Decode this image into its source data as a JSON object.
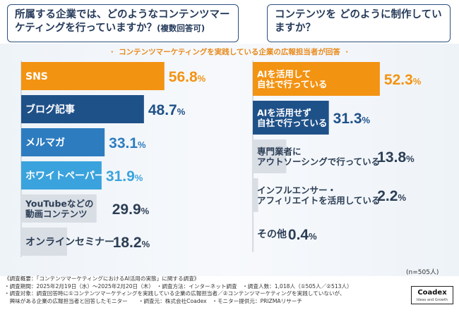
{
  "questions": {
    "left": "所属する企業では、どのようなコンテンツマーケティングを行っていますか？",
    "left_note": "(複数回答可)",
    "right": "コンテンツを どのように制作していますか？"
  },
  "subtitle": "コンテンツマーケティングを実践している企業の広報担当者が回答",
  "sample_size": "(n=505人)",
  "chart_data": [
    {
      "type": "bar",
      "orientation": "horizontal",
      "title": "所属する企業では、どのようなコンテンツマーケティングを行っていますか？(複数回答可)",
      "unit": "%",
      "categories": [
        "SNS",
        "ブログ記事",
        "メルマガ",
        "ホワイトペーパー",
        "YouTubeなどの動画コンテンツ",
        "オンラインセミナー"
      ],
      "values": [
        56.8,
        48.7,
        33.1,
        31.9,
        29.9,
        18.2
      ],
      "label_lines": [
        [
          "SNS"
        ],
        [
          "ブログ記事"
        ],
        [
          "メルマガ"
        ],
        [
          "ホワイトペーパー"
        ],
        [
          "YouTubeなどの",
          "動画コンテンツ"
        ],
        [
          "オンラインセミナー"
        ]
      ],
      "colors": [
        "#f39312",
        "#1f5189",
        "#2e7cc0",
        "#3aa3dd",
        "#d9dee5",
        "#d9dee5"
      ],
      "label_colors": [
        "#ffffff",
        "#ffffff",
        "#ffffff",
        "#ffffff",
        "#2c3e55",
        "#2c3e55"
      ],
      "value_colors": [
        "#f39312",
        "#1f5189",
        "#2e7cc0",
        "#3aa3dd",
        "#2c3e55",
        "#2c3e55"
      ]
    },
    {
      "type": "bar",
      "orientation": "horizontal",
      "title": "コンテンツをどのように制作していますか？",
      "unit": "%",
      "categories": [
        "AIを活用して自社で行っている",
        "AIを活用せず自社で行っている",
        "専門業者にアウトソーシングで行っている",
        "インフルエンサー・アフィリエイトを活用している",
        "その他"
      ],
      "values": [
        52.3,
        31.3,
        13.8,
        2.2,
        0.4
      ],
      "label_lines": [
        [
          "AIを活用して",
          "自社で行っている"
        ],
        [
          "AIを活用せず",
          "自社で行っている"
        ],
        [
          "専門業者に",
          "アウトソーシングで行っている"
        ],
        [
          "インフルエンサー・",
          "アフィリエイトを活用している"
        ],
        [
          "その他"
        ]
      ],
      "colors": [
        "#f39312",
        "#1f5189",
        "#d9dee5",
        "#d9dee5",
        "#d9dee5"
      ],
      "label_colors": [
        "#ffffff",
        "#ffffff",
        "#2c3e55",
        "#2c3e55",
        "#2c3e55"
      ],
      "value_colors": [
        "#f39312",
        "#1f5189",
        "#2c3e55",
        "#2c3e55",
        "#2c3e55"
      ]
    }
  ],
  "footer": {
    "line1": "《調査概要：「コンテンツマーケティングにおけるAI活用の実態」に関する調査》",
    "line2": "・調査期間：2025年2月19日（水）〜2025年2月20日（木）　・調査方法：インターネット調査　・調査人数：1,018人（①505人／②513人）",
    "line3": "・調査対象：調査回答時に①コンテンツマーケティングを実践している企業の広報担当者／②コンテンツマーケティングを実践していないが、",
    "line4": "　興味がある企業の広報担当者と回答したモニター　　・調査元：株式会社Coadex　・モニター提供元：PRIZMAリサーチ"
  },
  "logo": {
    "name": "Coadex",
    "tagline": "Ideas and Growth"
  }
}
